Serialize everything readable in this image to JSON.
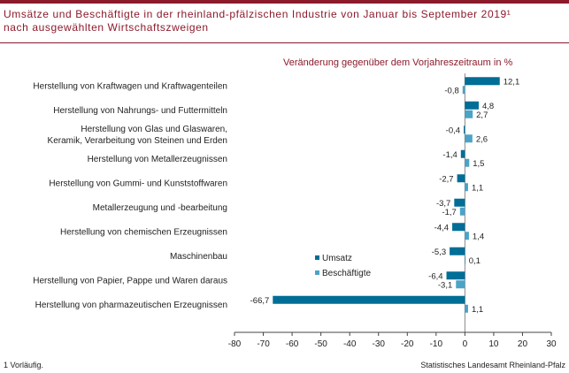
{
  "header": {
    "title_line1": "Umsätze und Beschäftigte in der rheinland-pfälzischen Industrie von Januar bis September 2019¹",
    "title_line2": "nach ausgewählten Wirtschaftszweigen"
  },
  "footer": {
    "footnote": "1 Vorläufig.",
    "source": "Statistisches Landesamt Rheinland-Pfalz"
  },
  "colors": {
    "brand": "#8b1a2b",
    "umsatz": "#006e96",
    "beschaeftigte": "#4ba3c7"
  },
  "chart_data": {
    "type": "bar",
    "orientation": "horizontal",
    "subtitle": "Veränderung gegenüber dem Vorjahreszeitraum in %",
    "categories": [
      [
        "Herstellung von Kraftwagen und Kraftwagenteilen"
      ],
      [
        "Herstellung von Nahrungs- und Futtermitteln"
      ],
      [
        "Herstellung von Glas und Glaswaren,",
        "Keramik, Verarbeitung von Steinen und Erden"
      ],
      [
        "Herstellung von Metallerzeugnissen"
      ],
      [
        "Herstellung von Gummi- und Kunststoffwaren"
      ],
      [
        "Metallerzeugung und -bearbeitung"
      ],
      [
        "Herstellung von chemischen Erzeugnissen"
      ],
      [
        "Maschinenbau"
      ],
      [
        "Herstellung von Papier, Pappe und Waren daraus"
      ],
      [
        "Herstellung von pharmazeutischen Erzeugnissen"
      ]
    ],
    "series": [
      {
        "name": "Umsatz",
        "values": [
          12.1,
          4.8,
          -0.4,
          -1.4,
          -2.7,
          -3.7,
          -4.4,
          -5.3,
          -6.4,
          -66.7
        ],
        "labels": [
          "12,1",
          "4,8",
          "-0,4",
          "-1,4",
          "-2,7",
          "-3,7",
          "-4,4",
          "-5,3",
          "-6,4",
          "-66,7"
        ]
      },
      {
        "name": "Beschäftigte",
        "values": [
          -0.8,
          2.7,
          2.6,
          1.5,
          1.1,
          -1.7,
          1.4,
          0.1,
          -3.1,
          1.1
        ],
        "labels": [
          "-0,8",
          "2,7",
          "2,6",
          "1,5",
          "1,1",
          "-1,7",
          "1,4",
          "0,1",
          "-3,1",
          "1,1"
        ]
      }
    ],
    "xlim": [
      -80,
      30
    ],
    "xticks": [
      -80,
      -70,
      -60,
      -50,
      -40,
      -30,
      -20,
      -10,
      0,
      10,
      20,
      30
    ],
    "legend_position": "center-right",
    "grid": false
  }
}
